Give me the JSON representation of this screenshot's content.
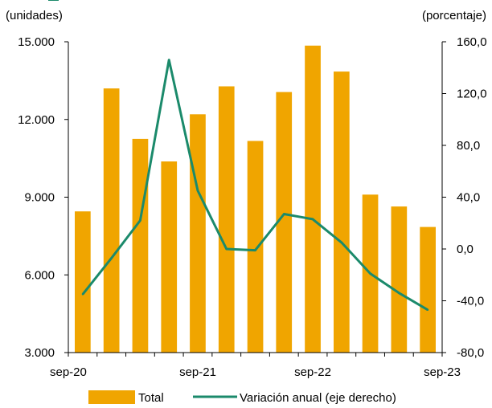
{
  "chart_data": {
    "type": "bar+line",
    "left_axis_label": "(unidades)",
    "right_axis_label": "(porcentaje)",
    "left_ylim": [
      3000,
      15000
    ],
    "right_ylim": [
      -80,
      160
    ],
    "left_ticks": [
      "15.000",
      "12.000",
      "9.000",
      "6.000",
      "3.000"
    ],
    "left_tick_values": [
      15000,
      12000,
      9000,
      6000,
      3000
    ],
    "right_ticks": [
      "160,0",
      "120,0",
      "80,0",
      "40,0",
      "0,0",
      "-40,0",
      "-80,0"
    ],
    "right_tick_values": [
      160,
      120,
      80,
      40,
      0,
      -40,
      -80
    ],
    "x_tick_labels": [
      "sep-20",
      "sep-21",
      "sep-22",
      "sep-23"
    ],
    "x_tick_label_index": [
      0,
      4,
      8,
      12
    ],
    "periods": 13,
    "grid": false,
    "legend_position": "bottom",
    "series": [
      {
        "name": "Total",
        "kind": "bar",
        "color": "#F0A500",
        "values": [
          8450,
          13200,
          11250,
          10380,
          12200,
          13280,
          11170,
          13060,
          14850,
          13850,
          9100,
          8640,
          7850
        ]
      },
      {
        "name": "Variación anual (eje derecho)",
        "kind": "line",
        "color": "#1B8A6B",
        "axis": "right",
        "values": [
          -35,
          -7,
          22,
          146,
          45,
          0,
          -1,
          27,
          23,
          5,
          -19,
          -34,
          -47
        ]
      }
    ]
  }
}
